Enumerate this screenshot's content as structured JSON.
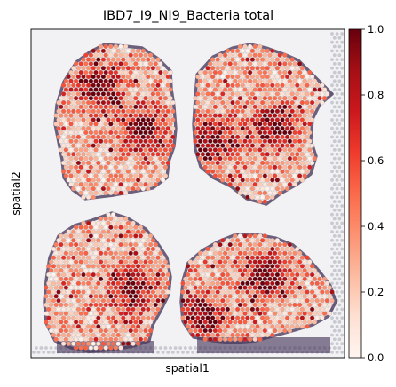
{
  "chart_data": {
    "type": "heatmap",
    "title": "IBD7_I9_NI9_Bacteria total",
    "xlabel": "spatial1",
    "ylabel": "spatial2",
    "colorbar": {
      "range": [
        0.0,
        1.0
      ],
      "ticks": [
        0.0,
        0.2,
        0.4,
        0.6,
        0.8,
        1.0
      ],
      "tick_labels": [
        "0.0",
        "0.2",
        "0.4",
        "0.6",
        "0.8",
        "1.0"
      ],
      "colormap": "Reds",
      "colors": [
        "#fff5f0",
        "#fee0d2",
        "#fcbba1",
        "#fc9272",
        "#fb6a4a",
        "#ef3b2c",
        "#cb181d",
        "#a50f15",
        "#67000d"
      ]
    },
    "grid": false,
    "legend": "colorbar-right",
    "tissue_color": "#4a3a5e",
    "background_spot_color": "#c9c9d1"
  }
}
